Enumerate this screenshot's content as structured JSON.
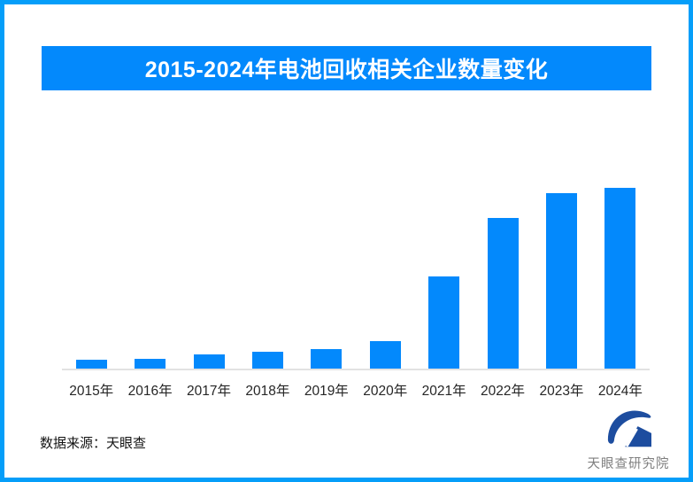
{
  "frame": {
    "border_color": "#059ef9"
  },
  "title": {
    "text": "2015-2024年电池回收相关企业数量变化",
    "bg_color": "#0389fc",
    "text_color": "#ffffff"
  },
  "chart_data": {
    "type": "bar",
    "title": "2015-2024年电池回收相关企业数量变化",
    "categories": [
      "2015年",
      "2016年",
      "2017年",
      "2018年",
      "2019年",
      "2020年",
      "2021年",
      "2022年",
      "2023年",
      "2024年"
    ],
    "values_pct_of_max": [
      5,
      5.5,
      8,
      9.5,
      11,
      15,
      51,
      83.5,
      97,
      100
    ],
    "bar_color": "#0389fc",
    "xlabel": "",
    "ylabel": "",
    "ylim_pct": [
      0,
      100
    ],
    "grid": false,
    "legend": false,
    "axis_line_color": "#e2e2e2"
  },
  "footer": {
    "source_label": "数据来源：天眼查"
  },
  "logo": {
    "text": "天眼查研究院",
    "icon": "tianyancha-eye-house-logo",
    "icon_color": "#1d4d9f",
    "text_color": "#7f7f7f"
  }
}
